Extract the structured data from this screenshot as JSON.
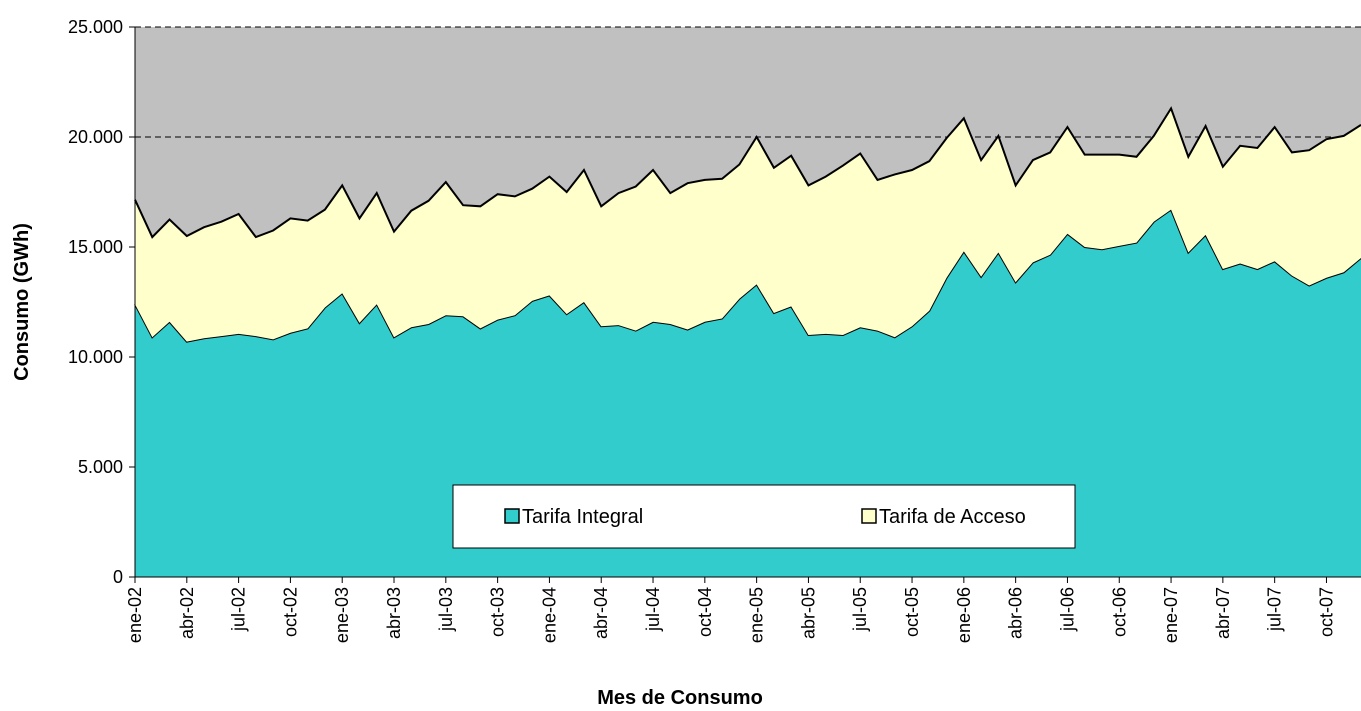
{
  "chart_data": {
    "type": "stacked_area",
    "x_label": "Mes de Consumo",
    "y_label": "Consumo (GWh)",
    "categories": [
      "ene-02",
      null,
      null,
      "abr-02",
      null,
      null,
      "jul-02",
      null,
      null,
      "oct-02",
      null,
      null,
      "ene-03",
      null,
      null,
      "abr-03",
      null,
      null,
      "jul-03",
      null,
      null,
      "oct-03",
      null,
      null,
      "ene-04",
      null,
      null,
      "abr-04",
      null,
      null,
      "jul-04",
      null,
      null,
      "oct-04",
      null,
      null,
      "ene-05",
      null,
      null,
      "abr-05",
      null,
      null,
      "jul-05",
      null,
      null,
      "oct-05",
      null,
      null,
      "ene-06",
      null,
      null,
      "abr-06",
      null,
      null,
      "jul-06",
      null,
      null,
      "oct-06",
      null,
      null,
      "ene-07",
      null,
      null,
      "abr-07",
      null,
      null,
      "jul-07",
      null,
      null,
      "oct-07",
      null,
      null
    ],
    "series": [
      {
        "name": "Tarifa Integral",
        "color": "#33cccc",
        "values": [
          12400,
          10900,
          11600,
          10700,
          10850,
          10950,
          11050,
          10950,
          10800,
          11100,
          11300,
          12250,
          12900,
          11550,
          12400,
          10900,
          11350,
          11500,
          11900,
          11850,
          11300,
          11700,
          11900,
          12550,
          12800,
          11950,
          12500,
          11400,
          11450,
          11200,
          11600,
          11500,
          11250,
          11600,
          11750,
          12650,
          13300,
          12000,
          12300,
          11000,
          11050,
          11000,
          11350,
          11200,
          10900,
          11400,
          12100,
          13600,
          14800,
          13650,
          14750,
          13400,
          14300,
          14650,
          15600,
          15000,
          14900,
          15050,
          15200,
          16150,
          16700,
          14750,
          15550,
          14000,
          14250,
          14000,
          14350,
          13700,
          13250,
          13600,
          13850,
          14500
        ]
      },
      {
        "name": "Tarifa de Acceso",
        "color": "#ffffcc",
        "values": [
          4750,
          4550,
          4650,
          4800,
          5050,
          5200,
          5450,
          4500,
          4950,
          5200,
          4900,
          4450,
          4900,
          4750,
          5050,
          4800,
          5300,
          5600,
          6050,
          5050,
          5550,
          5700,
          5400,
          5100,
          5400,
          5550,
          6000,
          5450,
          6000,
          6550,
          6900,
          5950,
          6650,
          6450,
          6350,
          6100,
          6700,
          6600,
          6850,
          6800,
          7150,
          7700,
          7900,
          6850,
          7400,
          7100,
          6800,
          6350,
          6050,
          5300,
          5300,
          4400,
          4650,
          4650,
          4850,
          4200,
          4300,
          4150,
          3900,
          3900,
          4600,
          4350,
          4950,
          4650,
          5350,
          5500,
          6100,
          5600,
          6150,
          6300,
          6200,
          6050
        ]
      }
    ],
    "ylim": [
      0,
      25000
    ],
    "yticks": [
      0,
      {
        "value": 5000,
        "label": "5.000"
      },
      {
        "value": 10000,
        "label": "10.000"
      },
      {
        "value": 15000,
        "label": "15.000"
      },
      {
        "value": 20000,
        "label": "20.000"
      },
      {
        "value": 25000,
        "label": "25.000"
      }
    ],
    "grid": true,
    "background": "#c0c0c0"
  }
}
